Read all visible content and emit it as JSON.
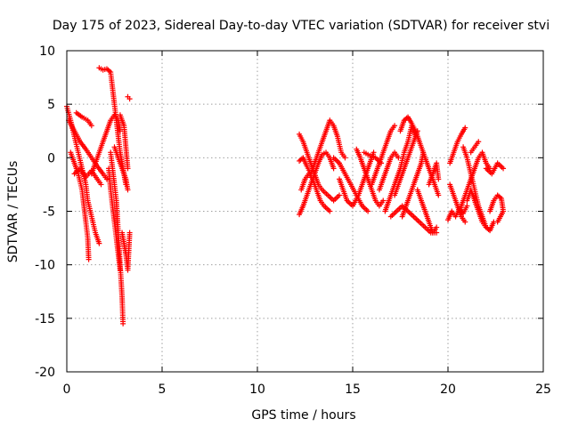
{
  "chart_data": {
    "type": "scatter",
    "title": "Day 175 of 2023, Sidereal Day-to-day VTEC variation (SDTVAR) for receiver stvi",
    "xlabel": "GPS time / hours",
    "ylabel": "SDTVAR / TECUs",
    "xlim": [
      0,
      25
    ],
    "ylim": [
      -20,
      10
    ],
    "xticks": [
      0,
      5,
      10,
      15,
      20,
      25
    ],
    "yticks": [
      -20,
      -15,
      -10,
      -5,
      0,
      5,
      10
    ],
    "grid": true,
    "marker": "plus",
    "color": "#ff0000",
    "tracks": [
      [
        [
          0.0,
          4.8
        ],
        [
          0.2,
          3.5
        ],
        [
          0.4,
          2.0
        ],
        [
          0.6,
          0.5
        ],
        [
          0.8,
          -1.0
        ],
        [
          1.0,
          -2.5
        ],
        [
          1.1,
          -4.0
        ],
        [
          1.3,
          -5.5
        ],
        [
          1.5,
          -7.0
        ],
        [
          1.7,
          -8.0
        ]
      ],
      [
        [
          0.1,
          3.5
        ],
        [
          0.4,
          2.5
        ],
        [
          0.7,
          1.5
        ],
        [
          1.0,
          0.8
        ],
        [
          1.3,
          0.0
        ],
        [
          1.6,
          -0.8
        ],
        [
          1.9,
          -1.5
        ],
        [
          2.1,
          -2.0
        ]
      ],
      [
        [
          0.2,
          0.5
        ],
        [
          0.4,
          -0.5
        ],
        [
          0.6,
          -1.5
        ],
        [
          0.8,
          -3.0
        ],
        [
          0.9,
          -4.5
        ],
        [
          1.0,
          -6.0
        ],
        [
          1.1,
          -7.5
        ],
        [
          1.15,
          -9.5
        ]
      ],
      [
        [
          0.4,
          -1.5
        ],
        [
          0.7,
          -1.0
        ],
        [
          1.0,
          -1.8
        ],
        [
          1.3,
          -1.2
        ],
        [
          1.6,
          -2.0
        ],
        [
          1.8,
          -2.5
        ]
      ],
      [
        [
          0.5,
          4.2
        ],
        [
          0.8,
          3.8
        ],
        [
          1.1,
          3.5
        ],
        [
          1.3,
          3.0
        ]
      ],
      [
        [
          1.7,
          8.4
        ],
        [
          1.9,
          8.2
        ],
        [
          2.1,
          8.3
        ],
        [
          2.3,
          8.0
        ],
        [
          2.4,
          6.5
        ],
        [
          2.5,
          5.0
        ],
        [
          2.6,
          3.5
        ],
        [
          2.7,
          2.0
        ],
        [
          2.8,
          0.5
        ],
        [
          2.9,
          -0.5
        ],
        [
          3.0,
          -1.5
        ],
        [
          3.1,
          -2.5
        ]
      ],
      [
        [
          1.3,
          -1.5
        ],
        [
          1.5,
          -0.5
        ],
        [
          1.7,
          0.5
        ],
        [
          1.9,
          1.5
        ],
        [
          2.1,
          2.5
        ],
        [
          2.3,
          3.5
        ],
        [
          2.5,
          4.0
        ],
        [
          2.7,
          3.5
        ],
        [
          2.8,
          2.5
        ]
      ],
      [
        [
          2.3,
          0.5
        ],
        [
          2.4,
          -1.0
        ],
        [
          2.5,
          -2.5
        ],
        [
          2.6,
          -4.0
        ],
        [
          2.65,
          -5.5
        ],
        [
          2.7,
          -7.0
        ],
        [
          2.75,
          -8.5
        ],
        [
          2.8,
          -10.0
        ],
        [
          2.85,
          -11.5
        ],
        [
          2.9,
          -13.0
        ],
        [
          2.93,
          -14.5
        ],
        [
          2.95,
          -15.5
        ]
      ],
      [
        [
          2.2,
          -1.0
        ],
        [
          2.3,
          -3.0
        ],
        [
          2.4,
          -4.5
        ],
        [
          2.5,
          -6.0
        ],
        [
          2.6,
          -7.5
        ],
        [
          2.7,
          -9.0
        ],
        [
          2.8,
          -10.5
        ]
      ],
      [
        [
          2.5,
          1.0
        ],
        [
          2.7,
          0.0
        ],
        [
          2.9,
          -1.0
        ],
        [
          3.1,
          -2.0
        ],
        [
          3.2,
          -3.0
        ]
      ],
      [
        [
          2.8,
          4.0
        ],
        [
          3.0,
          3.0
        ],
        [
          3.1,
          1.0
        ],
        [
          3.2,
          -1.0
        ]
      ],
      [
        [
          2.9,
          -7.0
        ],
        [
          3.0,
          -8.0
        ],
        [
          3.1,
          -9.0
        ],
        [
          3.2,
          -10.5
        ],
        [
          3.3,
          -7.0
        ]
      ],
      [
        [
          3.2,
          5.7
        ],
        [
          3.3,
          5.5
        ]
      ],
      [
        [
          12.2,
          2.2
        ],
        [
          12.4,
          1.5
        ],
        [
          12.6,
          0.5
        ],
        [
          12.8,
          -0.5
        ],
        [
          13.0,
          -1.5
        ],
        [
          13.2,
          -2.5
        ],
        [
          13.4,
          -3.0
        ],
        [
          13.7,
          -3.5
        ],
        [
          14.0,
          -4.0
        ],
        [
          14.3,
          -3.5
        ]
      ],
      [
        [
          12.2,
          -0.3
        ],
        [
          12.4,
          0.0
        ],
        [
          12.6,
          -0.8
        ],
        [
          12.8,
          -1.5
        ],
        [
          13.0,
          -0.5
        ],
        [
          13.2,
          0.5
        ],
        [
          13.4,
          1.5
        ],
        [
          13.6,
          2.5
        ],
        [
          13.8,
          3.5
        ],
        [
          14.0,
          3.0
        ],
        [
          14.2,
          2.0
        ],
        [
          14.4,
          0.5
        ],
        [
          14.6,
          0.0
        ]
      ],
      [
        [
          12.2,
          -5.3
        ],
        [
          12.4,
          -4.5
        ],
        [
          12.6,
          -3.5
        ],
        [
          12.8,
          -2.5
        ],
        [
          13.0,
          -1.5
        ],
        [
          13.2,
          -0.5
        ],
        [
          13.4,
          0.3
        ],
        [
          13.6,
          0.5
        ],
        [
          13.8,
          0.0
        ],
        [
          14.0,
          -1.0
        ]
      ],
      [
        [
          12.3,
          -3.0
        ],
        [
          12.5,
          -2.0
        ],
        [
          12.7,
          -1.5
        ],
        [
          12.9,
          -2.0
        ],
        [
          13.1,
          -3.0
        ],
        [
          13.3,
          -4.0
        ],
        [
          13.5,
          -4.5
        ],
        [
          13.8,
          -5.0
        ]
      ],
      [
        [
          14.0,
          0.0
        ],
        [
          14.3,
          -0.5
        ],
        [
          14.6,
          -1.5
        ],
        [
          14.9,
          -2.5
        ],
        [
          15.2,
          -3.5
        ],
        [
          15.5,
          -4.5
        ],
        [
          15.8,
          -5.0
        ]
      ],
      [
        [
          14.3,
          -2.0
        ],
        [
          14.5,
          -3.0
        ],
        [
          14.7,
          -4.0
        ],
        [
          15.0,
          -4.5
        ],
        [
          15.3,
          -3.5
        ],
        [
          15.5,
          -2.5
        ],
        [
          15.7,
          -1.5
        ],
        [
          15.9,
          -0.5
        ],
        [
          16.1,
          0.5
        ]
      ],
      [
        [
          15.2,
          0.8
        ],
        [
          15.4,
          0.0
        ],
        [
          15.6,
          -1.0
        ],
        [
          15.8,
          -2.0
        ],
        [
          16.0,
          -3.0
        ],
        [
          16.2,
          -4.0
        ],
        [
          16.4,
          -4.5
        ],
        [
          16.6,
          -4.0
        ]
      ],
      [
        [
          15.6,
          0.5
        ],
        [
          15.9,
          0.2
        ],
        [
          16.2,
          0.0
        ],
        [
          16.5,
          -0.5
        ]
      ],
      [
        [
          16.0,
          -2.5
        ],
        [
          16.2,
          -1.5
        ],
        [
          16.4,
          -0.5
        ],
        [
          16.6,
          0.5
        ],
        [
          16.8,
          1.5
        ],
        [
          17.0,
          2.5
        ],
        [
          17.2,
          3.0
        ]
      ],
      [
        [
          16.4,
          -3.0
        ],
        [
          16.6,
          -2.0
        ],
        [
          16.8,
          -1.0
        ],
        [
          17.0,
          0.0
        ],
        [
          17.2,
          0.5
        ],
        [
          17.4,
          0.0
        ]
      ],
      [
        [
          16.7,
          -5.0
        ],
        [
          16.9,
          -4.0
        ],
        [
          17.1,
          -3.0
        ],
        [
          17.3,
          -2.0
        ],
        [
          17.5,
          -1.0
        ],
        [
          17.7,
          0.5
        ],
        [
          17.9,
          1.5
        ],
        [
          18.1,
          3.0
        ],
        [
          18.3,
          2.0
        ]
      ],
      [
        [
          17.0,
          -5.5
        ],
        [
          17.3,
          -5.0
        ],
        [
          17.6,
          -4.5
        ],
        [
          17.9,
          -5.0
        ],
        [
          18.2,
          -5.5
        ],
        [
          18.5,
          -6.0
        ],
        [
          18.8,
          -6.5
        ],
        [
          19.1,
          -7.0
        ],
        [
          19.4,
          -7.0
        ]
      ],
      [
        [
          17.2,
          -3.5
        ],
        [
          17.4,
          -2.5
        ],
        [
          17.6,
          -1.5
        ],
        [
          17.8,
          -0.5
        ],
        [
          18.0,
          0.5
        ],
        [
          18.2,
          1.5
        ],
        [
          18.4,
          2.5
        ]
      ],
      [
        [
          17.5,
          2.5
        ],
        [
          17.7,
          3.5
        ],
        [
          17.9,
          3.8
        ],
        [
          18.1,
          3.2
        ],
        [
          18.3,
          2.5
        ],
        [
          18.5,
          1.5
        ],
        [
          18.7,
          0.5
        ],
        [
          18.9,
          -0.5
        ],
        [
          19.1,
          -1.5
        ],
        [
          19.3,
          -2.5
        ],
        [
          19.5,
          -3.5
        ]
      ],
      [
        [
          17.6,
          -5.5
        ],
        [
          17.8,
          -4.5
        ],
        [
          18.0,
          -3.5
        ],
        [
          18.2,
          -2.5
        ],
        [
          18.4,
          -1.5
        ],
        [
          18.6,
          -0.5
        ],
        [
          18.7,
          0.5
        ]
      ],
      [
        [
          18.4,
          -3.0
        ],
        [
          18.6,
          -4.0
        ],
        [
          18.8,
          -5.0
        ],
        [
          19.0,
          -6.0
        ],
        [
          19.2,
          -7.0
        ],
        [
          19.4,
          -6.5
        ]
      ],
      [
        [
          19.0,
          -2.5
        ],
        [
          19.2,
          -1.5
        ],
        [
          19.4,
          -0.5
        ],
        [
          19.5,
          -2.0
        ]
      ],
      [
        [
          20.1,
          -0.5
        ],
        [
          20.3,
          0.5
        ],
        [
          20.5,
          1.5
        ],
        [
          20.7,
          2.2
        ],
        [
          20.9,
          2.8
        ]
      ],
      [
        [
          20.0,
          -5.8
        ],
        [
          20.2,
          -5.0
        ],
        [
          20.4,
          -5.5
        ],
        [
          20.6,
          -4.8
        ],
        [
          20.8,
          -5.2
        ],
        [
          21.0,
          -4.5
        ]
      ],
      [
        [
          20.1,
          -2.5
        ],
        [
          20.3,
          -3.5
        ],
        [
          20.5,
          -4.5
        ],
        [
          20.7,
          -5.5
        ],
        [
          20.9,
          -6.0
        ]
      ],
      [
        [
          20.6,
          -5.0
        ],
        [
          20.8,
          -4.0
        ],
        [
          21.0,
          -3.0
        ],
        [
          21.2,
          -2.0
        ],
        [
          21.4,
          -1.0
        ],
        [
          21.6,
          0.0
        ],
        [
          21.8,
          0.5
        ],
        [
          22.0,
          -0.5
        ],
        [
          22.2,
          -1.0
        ]
      ],
      [
        [
          20.8,
          1.0
        ],
        [
          21.0,
          0.0
        ],
        [
          21.2,
          -1.5
        ],
        [
          21.4,
          -3.0
        ],
        [
          21.6,
          -4.5
        ],
        [
          21.8,
          -5.5
        ],
        [
          22.0,
          -6.5
        ],
        [
          22.2,
          -6.8
        ],
        [
          22.4,
          -6.0
        ]
      ],
      [
        [
          21.0,
          -4.0
        ],
        [
          21.2,
          -3.0
        ],
        [
          21.4,
          -4.0
        ],
        [
          21.6,
          -5.0
        ],
        [
          21.8,
          -6.0
        ],
        [
          22.0,
          -6.5
        ]
      ],
      [
        [
          22.2,
          -5.0
        ],
        [
          22.4,
          -4.0
        ],
        [
          22.6,
          -3.5
        ],
        [
          22.8,
          -3.8
        ],
        [
          22.9,
          -5.0
        ],
        [
          22.6,
          -6.0
        ]
      ],
      [
        [
          22.0,
          -1.0
        ],
        [
          22.3,
          -1.5
        ],
        [
          22.6,
          -0.5
        ],
        [
          22.9,
          -1.0
        ]
      ],
      [
        [
          21.2,
          0.5
        ],
        [
          21.4,
          1.0
        ],
        [
          21.6,
          1.5
        ]
      ]
    ]
  }
}
